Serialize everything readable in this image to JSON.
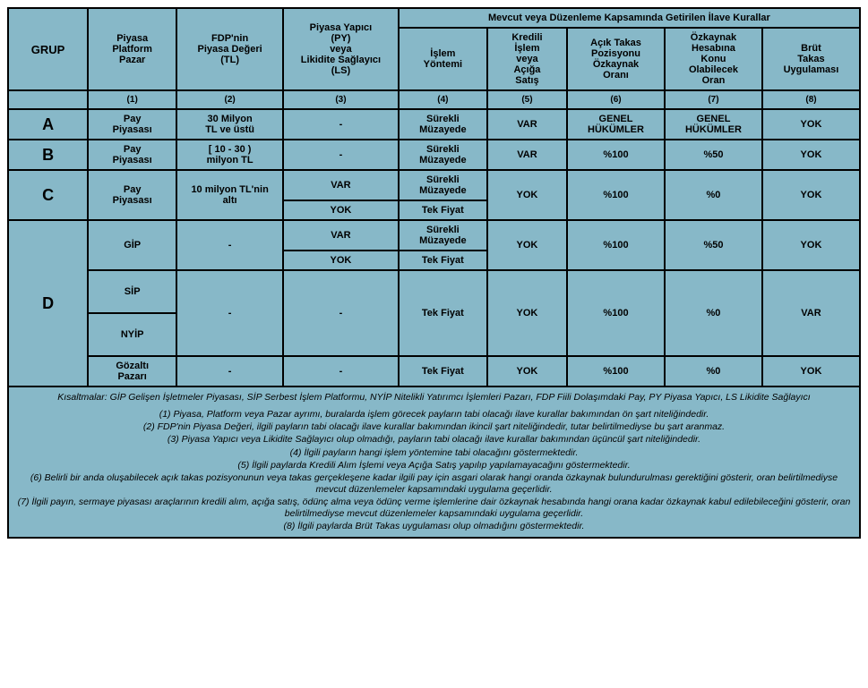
{
  "colors": {
    "bg": "#87b8c8",
    "border": "#000000",
    "text": "#000000"
  },
  "headers": {
    "grup": "GRUP",
    "c1": "Piyasa\nPlatform\nPazar",
    "c2": "FDP'nin\nPiyasa Değeri\n(TL)",
    "c3": "Piyasa Yapıcı\n(PY)\nveya\nLikidite Sağlayıcı\n(LS)",
    "top": "Mevcut veya Düzenleme Kapsamında Getirilen İlave Kurallar",
    "c4": "İşlem\nYöntemi",
    "c5": "Kredili\nİşlem\nveya\nAçığa\nSatış",
    "c6": "Açık Takas\nPozisyonu\nÖzkaynak\nOranı",
    "c7": "Özkaynak\nHesabına\nKonu\nOlabilecek\nOran",
    "c8": "Brüt\nTakas\nUygulaması",
    "nums": [
      "(1)",
      "(2)",
      "(3)",
      "(4)",
      "(5)",
      "(6)",
      "(7)",
      "(8)"
    ]
  },
  "rows": {
    "A": {
      "g": "A",
      "c1": "Pay\nPiyasası",
      "c2": "30 Milyon\nTL ve üstü",
      "c3": "-",
      "c4": "Sürekli\nMüzayede",
      "c5": "VAR",
      "c6": "GENEL\nHÜKÜMLER",
      "c7": "GENEL\nHÜKÜMLER",
      "c8": "YOK"
    },
    "B": {
      "g": "B",
      "c1": "Pay\nPiyasası",
      "c2": "[ 10 - 30 )\nmilyon TL",
      "c3": "-",
      "c4": "Sürekli\nMüzayede",
      "c5": "VAR",
      "c6": "%100",
      "c7": "%50",
      "c8": "YOK"
    },
    "C": {
      "g": "C",
      "c1": "Pay\nPiyasası",
      "c2": "10 milyon TL'nin\naltı",
      "c3a": "VAR",
      "c3b": "YOK",
      "c4a": "Sürekli\nMüzayede",
      "c4b": "Tek Fiyat",
      "c5": "YOK",
      "c6": "%100",
      "c7": "%0",
      "c8": "YOK"
    },
    "D1": {
      "c1": "GİP",
      "c2": "-",
      "c3a": "VAR",
      "c3b": "YOK",
      "c4a": "Sürekli\nMüzayede",
      "c4b": "Tek Fiyat",
      "c5": "YOK",
      "c6": "%100",
      "c7": "%50",
      "c8": "YOK"
    },
    "D2": {
      "c1a": "SİP",
      "c1b": "NYİP",
      "c2": "-",
      "c3": "-",
      "c4": "Tek Fiyat",
      "c5": "YOK",
      "c6": "%100",
      "c7": "%0",
      "c8": "VAR"
    },
    "D3": {
      "c1": "Gözaltı\nPazarı",
      "c2": "-",
      "c3": "-",
      "c4": "Tek Fiyat",
      "c5": "YOK",
      "c6": "%100",
      "c7": "%0",
      "c8": "YOK"
    },
    "Dg": "D"
  },
  "notes": {
    "abbr": "Kısaltmalar: GİP Gelişen İşletmeler Piyasası, SİP Serbest İşlem Platformu, NYİP Nitelikli Yatırımcı İşlemleri Pazarı, FDP Fiili Dolaşımdaki Pay, PY Piyasa Yapıcı, LS Likidite Sağlayıcı",
    "n1": "(1) Piyasa, Platform veya Pazar ayrımı, buralarda işlem görecek payların tabi olacağı ilave kurallar bakımından ön şart niteliğindedir.",
    "n2": "(2) FDP'nin Piyasa Değeri, ilgili payların tabi olacağı ilave kurallar bakımından ikincil şart niteliğindedir, tutar belirtilmediyse bu şart aranmaz.",
    "n3": "(3) Piyasa Yapıcı veya Likidite Sağlayıcı olup olmadığı, payların tabi olacağı ilave kurallar bakımından üçüncül şart niteliğindedir.",
    "n4": "(4) İlgili payların hangi işlem yöntemine tabi olacağını göstermektedir.",
    "n5": "(5) İlgili paylarda Kredili Alım İşlemi veya Açığa Satış yapılıp yapılamayacağını göstermektedir.",
    "n6": "(6) Belirli bir anda oluşabilecek açık takas pozisyonunun veya takas gerçekleşene kadar ilgili pay için asgari olarak hangi oranda özkaynak bulundurulması gerektiğini gösterir, oran belirtilmediyse mevcut düzenlemeler kapsamındaki uygulama geçerlidir.",
    "n7": "(7) İlgili payın, sermaye piyasası araçlarının kredili alım, açığa satış, ödünç alma veya ödünç verme işlemlerine dair özkaynak hesabında hangi orana kadar özkaynak kabul edilebileceğini gösterir, oran belirtilmediyse mevcut düzenlemeler kapsamındaki uygulama geçerlidir.",
    "n8": "(8) İlgili paylarda Brüt Takas uygulaması olup olmadığını göstermektedir."
  }
}
